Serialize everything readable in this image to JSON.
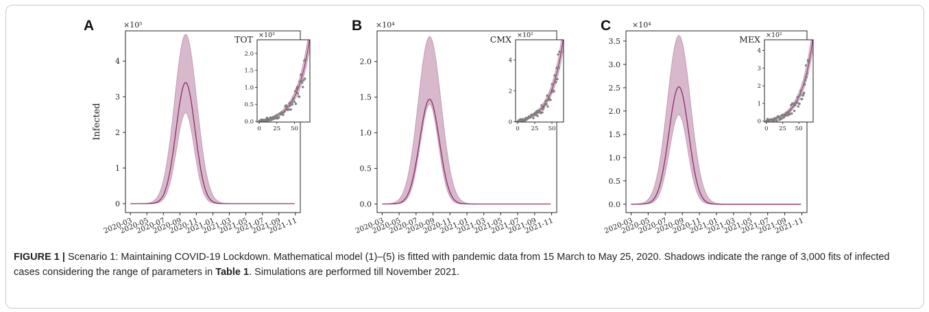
{
  "figure": {
    "caption": {
      "label": "FIGURE 1 |",
      "part1": " Scenario 1: Maintaining COVID-19 Lockdown. Mathematical model (1)–(5) is fitted with pandemic data from 15 March to May 25, 2020. Shadows indicate the range of 3,000 fits of infected cases considering the range of parameters in ",
      "table_ref": "Table 1",
      "part2": ". Simulations are performed till November 2021."
    },
    "colors": {
      "line": "#8b2a6b",
      "band_fill": "#d7b9cb",
      "band_edge": "#c79ab5",
      "points": "#808080"
    }
  },
  "chart_data": [
    {
      "type": "area",
      "panel": "A",
      "title": "TOT",
      "ylabel": "Infected",
      "multiplier": "×10⁵",
      "x_ticks": [
        "2020-03",
        "2020-05",
        "2020-07",
        "2020-09",
        "2020-11",
        "2021-01",
        "2021-03",
        "2021-05",
        "2021-07",
        "2021-09",
        "2021-11"
      ],
      "y_ticks": [
        "0",
        "1",
        "2",
        "3",
        "4"
      ],
      "ylim": [
        -0.25,
        4.85
      ],
      "peak": {
        "date": "2020-10",
        "mean": 3.4,
        "upper": 4.75,
        "lower": 2.55
      },
      "inset": {
        "type": "scatter",
        "multiplier": "×10³",
        "x_ticks": [
          "0",
          "25",
          "50"
        ],
        "y_ticks": [
          "0.0",
          "0.5",
          "1.0",
          "1.5",
          "2.0"
        ],
        "xlim": [
          -3,
          72
        ],
        "ylim": [
          -0.02,
          2.4
        ]
      }
    },
    {
      "type": "area",
      "panel": "B",
      "title": "CMX",
      "ylabel": "",
      "multiplier": "×10⁴",
      "x_ticks": [
        "2020-03",
        "2020-05",
        "2020-07",
        "2020-09",
        "2020-11",
        "2021-01",
        "2021-03",
        "2021-05",
        "2021-07",
        "2021-09",
        "2021-11"
      ],
      "y_ticks": [
        "0.0",
        "0.5",
        "1.0",
        "1.5",
        "2.0"
      ],
      "ylim": [
        -0.12,
        2.43
      ],
      "peak": {
        "date": "2020-09",
        "mean": 1.47,
        "upper": 2.35,
        "lower": 1.4
      },
      "inset": {
        "type": "scatter",
        "multiplier": "×10²",
        "x_ticks": [
          "0",
          "25",
          "50"
        ],
        "y_ticks": [
          "0",
          "2",
          "4"
        ],
        "xlim": [
          -3,
          67
        ],
        "ylim": [
          -0.03,
          5.3
        ]
      }
    },
    {
      "type": "area",
      "panel": "C",
      "title": "MEX",
      "ylabel": "",
      "multiplier": "×10⁴",
      "x_ticks": [
        "2020-03",
        "2020-05",
        "2020-07",
        "2020-09",
        "2020-11",
        "2021-01",
        "2021-03",
        "2021-05",
        "2021-07",
        "2021-09",
        "2021-11"
      ],
      "y_ticks": [
        "0.0",
        "0.5",
        "1.0",
        "1.5",
        "2.0",
        "2.5",
        "3.0",
        "3.5"
      ],
      "ylim": [
        -0.18,
        3.72
      ],
      "peak": {
        "date": "2020-09",
        "mean": 2.52,
        "upper": 3.62,
        "lower": 1.92
      },
      "inset": {
        "type": "scatter",
        "multiplier": "×10²",
        "x_ticks": [
          "0",
          "25",
          "50"
        ],
        "y_ticks": [
          "0",
          "1",
          "2",
          "3",
          "4"
        ],
        "xlim": [
          -3,
          72
        ],
        "ylim": [
          -0.05,
          4.6
        ]
      }
    }
  ]
}
